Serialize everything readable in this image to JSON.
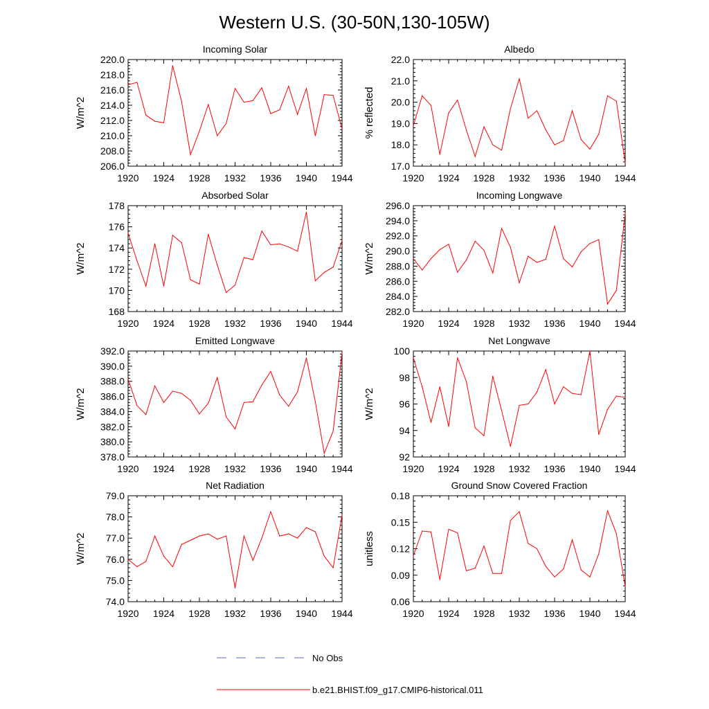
{
  "figure": {
    "title": "Western U.S. (30-50N,130-105W)",
    "series_color": "#ff0000",
    "obs_color": "#5a6fd0",
    "legend": [
      {
        "label": "No Obs",
        "style": "dashed",
        "color": "#5a6fd0"
      },
      {
        "label": "b.e21.BHIST.f09_g17.CMIP6-historical.011",
        "style": "solid",
        "color": "#ff0000"
      }
    ]
  },
  "chart_data": [
    {
      "type": "line",
      "title": "Incoming Solar",
      "ylabel": "W/m^2",
      "xlim": [
        1920,
        1944
      ],
      "ylim": [
        206.0,
        220.0
      ],
      "xticks": [
        "1920",
        "1924",
        "1928",
        "1932",
        "1936",
        "1940",
        "1944"
      ],
      "yticks": [
        "206.0",
        "208.0",
        "210.0",
        "212.0",
        "214.0",
        "216.0",
        "218.0",
        "220.0"
      ],
      "x": [
        1920,
        1921,
        1922,
        1923,
        1924,
        1925,
        1926,
        1927,
        1928,
        1929,
        1930,
        1931,
        1932,
        1933,
        1934,
        1935,
        1936,
        1937,
        1938,
        1939,
        1940,
        1941,
        1942,
        1943,
        1944
      ],
      "series": [
        {
          "name": "b.e21.BHIST.f09_g17.CMIP6-historical.011",
          "values": [
            216.7,
            217.0,
            212.7,
            211.9,
            211.7,
            219.2,
            214.5,
            207.5,
            210.6,
            214.1,
            210.0,
            211.6,
            216.2,
            214.4,
            214.6,
            216.3,
            212.9,
            213.4,
            216.5,
            212.8,
            216.2,
            210.0,
            215.4,
            215.3,
            210.9
          ]
        }
      ]
    },
    {
      "type": "line",
      "title": "Albedo",
      "ylabel": "% reflected",
      "xlim": [
        1920,
        1944
      ],
      "ylim": [
        17.0,
        22.0
      ],
      "xticks": [
        "1920",
        "1924",
        "1928",
        "1932",
        "1936",
        "1940",
        "1944"
      ],
      "yticks": [
        "17.0",
        "18.0",
        "19.0",
        "20.0",
        "21.0",
        "22.0"
      ],
      "x": [
        1920,
        1921,
        1922,
        1923,
        1924,
        1925,
        1926,
        1927,
        1928,
        1929,
        1930,
        1931,
        1932,
        1933,
        1934,
        1935,
        1936,
        1937,
        1938,
        1939,
        1940,
        1941,
        1942,
        1943,
        1944
      ],
      "series": [
        {
          "name": "b.e21.BHIST.f09_g17.CMIP6-historical.011",
          "values": [
            18.9,
            20.3,
            19.85,
            17.55,
            19.5,
            20.1,
            18.7,
            17.45,
            18.85,
            18.0,
            17.75,
            19.7,
            21.1,
            19.25,
            19.6,
            18.7,
            18.0,
            18.2,
            19.6,
            18.25,
            17.8,
            18.5,
            20.3,
            20.05,
            17.15
          ]
        }
      ]
    },
    {
      "type": "line",
      "title": "Absorbed Solar",
      "ylabel": "W/m^2",
      "xlim": [
        1920,
        1944
      ],
      "ylim": [
        168,
        178
      ],
      "xticks": [
        "1920",
        "1924",
        "1928",
        "1932",
        "1936",
        "1940",
        "1944"
      ],
      "yticks": [
        "168",
        "170",
        "172",
        "174",
        "176",
        "178"
      ],
      "x": [
        1920,
        1921,
        1922,
        1923,
        1924,
        1925,
        1926,
        1927,
        1928,
        1929,
        1930,
        1931,
        1932,
        1933,
        1934,
        1935,
        1936,
        1937,
        1938,
        1939,
        1940,
        1941,
        1942,
        1943,
        1944
      ],
      "series": [
        {
          "name": "b.e21.BHIST.f09_g17.CMIP6-historical.011",
          "values": [
            175.4,
            172.8,
            170.4,
            174.4,
            170.4,
            175.2,
            174.5,
            171.0,
            170.6,
            175.3,
            172.4,
            169.8,
            170.5,
            173.1,
            172.9,
            175.6,
            174.3,
            174.4,
            174.1,
            173.7,
            177.4,
            170.9,
            171.7,
            172.2,
            174.7
          ]
        }
      ]
    },
    {
      "type": "line",
      "title": "Incoming Longwave",
      "ylabel": "W/m^2",
      "xlim": [
        1920,
        1944
      ],
      "ylim": [
        282.0,
        296.0
      ],
      "xticks": [
        "1920",
        "1924",
        "1928",
        "1932",
        "1936",
        "1940",
        "1944"
      ],
      "yticks": [
        "282.0",
        "284.0",
        "286.0",
        "288.0",
        "290.0",
        "292.0",
        "294.0",
        "296.0"
      ],
      "x": [
        1920,
        1921,
        1922,
        1923,
        1924,
        1925,
        1926,
        1927,
        1928,
        1929,
        1930,
        1931,
        1932,
        1933,
        1934,
        1935,
        1936,
        1937,
        1938,
        1939,
        1940,
        1941,
        1942,
        1943,
        1944
      ],
      "series": [
        {
          "name": "b.e21.BHIST.f09_g17.CMIP6-historical.011",
          "values": [
            289.0,
            287.5,
            289.0,
            290.2,
            290.9,
            287.2,
            288.8,
            291.3,
            290.1,
            287.1,
            293.0,
            290.5,
            285.8,
            289.3,
            288.5,
            288.9,
            293.3,
            289.0,
            287.9,
            289.9,
            291.0,
            291.5,
            283.0,
            284.8,
            295.0
          ]
        }
      ]
    },
    {
      "type": "line",
      "title": "Emitted Longwave",
      "ylabel": "W/m^2",
      "xlim": [
        1920,
        1944
      ],
      "ylim": [
        378.0,
        392.0
      ],
      "xticks": [
        "1920",
        "1924",
        "1928",
        "1932",
        "1936",
        "1940",
        "1944"
      ],
      "yticks": [
        "378.0",
        "380.0",
        "382.0",
        "384.0",
        "386.0",
        "388.0",
        "390.0",
        "392.0"
      ],
      "x": [
        1920,
        1921,
        1922,
        1923,
        1924,
        1925,
        1926,
        1927,
        1928,
        1929,
        1930,
        1931,
        1932,
        1933,
        1934,
        1935,
        1936,
        1937,
        1938,
        1939,
        1940,
        1941,
        1942,
        1943,
        1944
      ],
      "series": [
        {
          "name": "b.e21.BHIST.f09_g17.CMIP6-historical.011",
          "values": [
            388.3,
            384.8,
            383.6,
            387.4,
            385.2,
            386.7,
            386.4,
            385.5,
            383.7,
            385.1,
            388.5,
            383.3,
            381.7,
            385.2,
            385.3,
            387.5,
            389.3,
            386.2,
            384.7,
            386.6,
            391.1,
            385.3,
            378.5,
            381.4,
            391.8
          ]
        }
      ]
    },
    {
      "type": "line",
      "title": "Net Longwave",
      "ylabel": "W/m^2",
      "xlim": [
        1920,
        1944
      ],
      "ylim": [
        92,
        100
      ],
      "xticks": [
        "1920",
        "1924",
        "1928",
        "1932",
        "1936",
        "1940",
        "1944"
      ],
      "yticks": [
        "92",
        "94",
        "96",
        "98",
        "100"
      ],
      "x": [
        1920,
        1921,
        1922,
        1923,
        1924,
        1925,
        1926,
        1927,
        1928,
        1929,
        1930,
        1931,
        1932,
        1933,
        1934,
        1935,
        1936,
        1937,
        1938,
        1939,
        1940,
        1941,
        1942,
        1943,
        1944
      ],
      "series": [
        {
          "name": "b.e21.BHIST.f09_g17.CMIP6-historical.011",
          "values": [
            99.5,
            97.3,
            94.6,
            97.3,
            94.3,
            99.5,
            97.7,
            94.2,
            93.6,
            98.1,
            95.5,
            92.8,
            95.9,
            96.0,
            96.9,
            98.6,
            96.0,
            97.3,
            96.8,
            96.7,
            100.0,
            93.7,
            95.6,
            96.6,
            96.5
          ]
        }
      ]
    },
    {
      "type": "line",
      "title": "Net Radiation",
      "ylabel": "W/m^2",
      "xlim": [
        1920,
        1944
      ],
      "ylim": [
        74.0,
        79.0
      ],
      "xticks": [
        "1920",
        "1924",
        "1928",
        "1932",
        "1936",
        "1940",
        "1944"
      ],
      "yticks": [
        "74.0",
        "75.0",
        "76.0",
        "77.0",
        "78.0",
        "79.0"
      ],
      "x": [
        1920,
        1921,
        1922,
        1923,
        1924,
        1925,
        1926,
        1927,
        1928,
        1929,
        1930,
        1931,
        1932,
        1933,
        1934,
        1935,
        1936,
        1937,
        1938,
        1939,
        1940,
        1941,
        1942,
        1943,
        1944
      ],
      "series": [
        {
          "name": "b.e21.BHIST.f09_g17.CMIP6-historical.011",
          "values": [
            76.0,
            75.65,
            75.9,
            77.1,
            76.15,
            75.65,
            76.7,
            76.9,
            77.1,
            77.2,
            76.95,
            77.1,
            74.65,
            77.1,
            75.95,
            77.0,
            78.25,
            77.1,
            77.2,
            77.0,
            77.5,
            77.3,
            76.15,
            75.6,
            78.1
          ]
        }
      ]
    },
    {
      "type": "line",
      "title": "Ground Snow Covered Fraction",
      "ylabel": "unitless",
      "xlim": [
        1920,
        1944
      ],
      "ylim": [
        0.06,
        0.18
      ],
      "xticks": [
        "1920",
        "1924",
        "1928",
        "1932",
        "1936",
        "1940",
        "1944"
      ],
      "yticks": [
        "0.06",
        "0.09",
        "0.12",
        "0.15",
        "0.18"
      ],
      "x": [
        1920,
        1921,
        1922,
        1923,
        1924,
        1925,
        1926,
        1927,
        1928,
        1929,
        1930,
        1931,
        1932,
        1933,
        1934,
        1935,
        1936,
        1937,
        1938,
        1939,
        1940,
        1941,
        1942,
        1943,
        1944
      ],
      "series": [
        {
          "name": "b.e21.BHIST.f09_g17.CMIP6-historical.011",
          "values": [
            0.112,
            0.14,
            0.139,
            0.085,
            0.142,
            0.138,
            0.095,
            0.098,
            0.123,
            0.092,
            0.092,
            0.152,
            0.162,
            0.126,
            0.12,
            0.1,
            0.088,
            0.097,
            0.13,
            0.096,
            0.088,
            0.114,
            0.163,
            0.137,
            0.077
          ]
        }
      ]
    }
  ]
}
